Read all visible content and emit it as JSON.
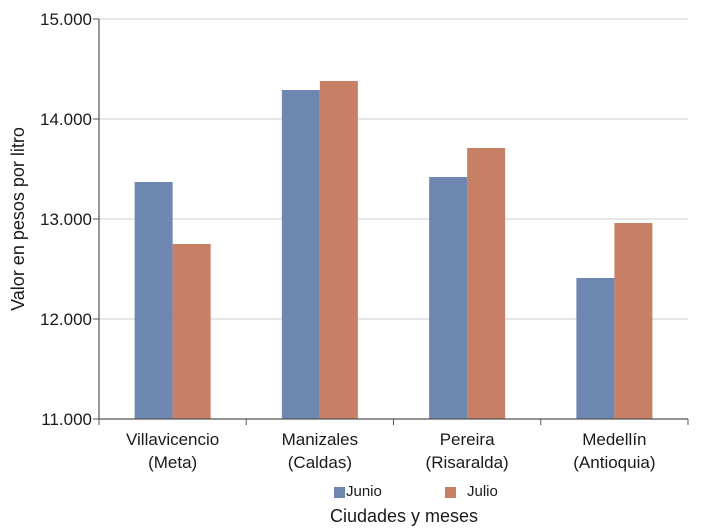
{
  "chart_data": {
    "type": "bar",
    "title": "",
    "xlabel": "Ciudades y meses",
    "ylabel": "Valor en pesos por litro",
    "ylim": [
      11000,
      15000
    ],
    "yticks": [
      "15.000",
      "14.000",
      "13.000",
      "12.000",
      "11.000"
    ],
    "ytick_values": [
      15000,
      14000,
      13000,
      12000,
      11000
    ],
    "categories": [
      [
        "Villavicencio",
        "(Meta)"
      ],
      [
        "Manizales",
        "(Caldas)"
      ],
      [
        "Pereira",
        "(Risaralda)"
      ],
      [
        "Medellín",
        "(Antioquia)"
      ]
    ],
    "series": [
      {
        "name": "Junio",
        "values": [
          13370,
          14290,
          13420,
          12410
        ],
        "color": "#6e87b0"
      },
      {
        "name": "Julio",
        "values": [
          12750,
          14380,
          13710,
          12960
        ],
        "color": "#c77f66"
      }
    ],
    "grid": true,
    "legend_position": "bottom"
  }
}
